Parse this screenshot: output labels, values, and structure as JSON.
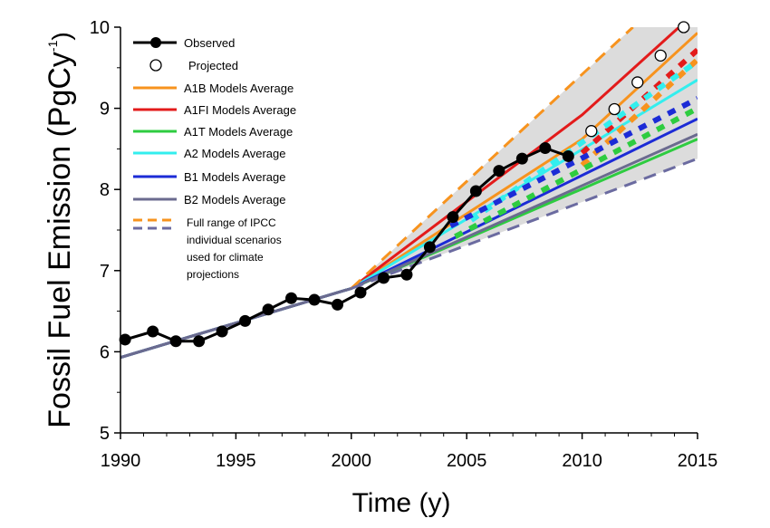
{
  "chart_data": {
    "type": "line",
    "xlabel": "Time (y)",
    "ylabel": "Fossil Fuel Emission (PgCy",
    "ylabel_sup": "-1",
    "ylabel_close": ")",
    "xlim": [
      1990,
      2015
    ],
    "ylim": [
      5,
      10
    ],
    "xticks": [
      1990,
      1995,
      2000,
      2005,
      2010,
      2015
    ],
    "yticks": [
      5,
      6,
      7,
      8,
      9,
      10
    ],
    "grid": false,
    "legend_position": "top-left",
    "observed": {
      "name": "Observed",
      "color": "#000000",
      "points": [
        [
          1990.2,
          6.15
        ],
        [
          1991.4,
          6.25
        ],
        [
          1992.4,
          6.13
        ],
        [
          1993.4,
          6.13
        ],
        [
          1994.4,
          6.25
        ],
        [
          1995.4,
          6.38
        ],
        [
          1996.4,
          6.52
        ],
        [
          1997.4,
          6.66
        ],
        [
          1998.4,
          6.64
        ],
        [
          1999.4,
          6.58
        ],
        [
          2000.4,
          6.73
        ],
        [
          2001.4,
          6.91
        ],
        [
          2002.4,
          6.95
        ],
        [
          2003.4,
          7.29
        ],
        [
          2004.4,
          7.66
        ],
        [
          2005.4,
          7.98
        ],
        [
          2006.4,
          8.23
        ],
        [
          2007.4,
          8.38
        ],
        [
          2008.4,
          8.51
        ],
        [
          2009.4,
          8.41
        ]
      ],
      "line_start": [
        1990,
        6.11
      ]
    },
    "projected": {
      "name": "Projected",
      "points": [
        [
          2010.4,
          8.72
        ],
        [
          2011.4,
          8.99
        ],
        [
          2012.4,
          9.32
        ],
        [
          2013.4,
          9.65
        ],
        [
          2014.4,
          10.0
        ]
      ]
    },
    "ipcc_range": {
      "name": "Full range of IPCC individual scenarios used for climate projections",
      "upper_color": "#F7931E",
      "lower_color": "#6B6BA0",
      "fill_color": "#dcdcdc",
      "upper": [
        [
          2000,
          6.78
        ],
        [
          2012.2,
          10.0
        ]
      ],
      "lower": [
        [
          2000,
          6.78
        ],
        [
          2015,
          8.38
        ]
      ]
    },
    "series": [
      {
        "name": "A1B Models Average",
        "color": "#F7931E",
        "solid": [
          [
            1990,
            5.93
          ],
          [
            2000,
            6.78
          ],
          [
            2010,
            8.62
          ],
          [
            2015,
            9.93
          ]
        ],
        "dotted": [
          [
            2010,
            8.3
          ],
          [
            2015,
            9.6
          ]
        ]
      },
      {
        "name": "A1FI Models Average",
        "color": "#E31B1B",
        "solid": [
          [
            1990,
            5.93
          ],
          [
            2000,
            6.78
          ],
          [
            2010,
            8.92
          ],
          [
            2014.2,
            10.0
          ]
        ],
        "dotted": [
          [
            2010,
            8.45
          ],
          [
            2015,
            9.72
          ]
        ]
      },
      {
        "name": "A1T Models Average",
        "color": "#2ECC40",
        "solid": [
          [
            1990,
            5.93
          ],
          [
            2000,
            6.78
          ],
          [
            2015,
            8.62
          ]
        ],
        "dotted": [
          [
            2004.5,
            7.42
          ],
          [
            2015,
            9.0
          ]
        ]
      },
      {
        "name": "A2 Models Average",
        "color": "#33EEEE",
        "solid": [
          [
            1990,
            5.93
          ],
          [
            2000,
            6.78
          ],
          [
            2015,
            9.35
          ]
        ],
        "dotted": [
          [
            2005.2,
            7.62
          ],
          [
            2015,
            9.58
          ]
        ]
      },
      {
        "name": "B1 Models Average",
        "color": "#1C2BD6",
        "solid": [
          [
            1990,
            5.93
          ],
          [
            2000,
            6.78
          ],
          [
            2015,
            8.87
          ]
        ],
        "dotted": [
          [
            2004.3,
            7.55
          ],
          [
            2015,
            9.12
          ]
        ]
      },
      {
        "name": "B2 Models Average",
        "color": "#6B6B8F",
        "solid": [
          [
            1990,
            5.93
          ],
          [
            2000,
            6.78
          ],
          [
            2015,
            8.68
          ]
        ],
        "dotted": []
      }
    ],
    "legend_labels": {
      "observed": "Observed",
      "projected": "Projected",
      "range_lines": [
        "Full range of IPCC",
        "individual scenarios",
        "used for climate",
        "projections"
      ]
    }
  }
}
